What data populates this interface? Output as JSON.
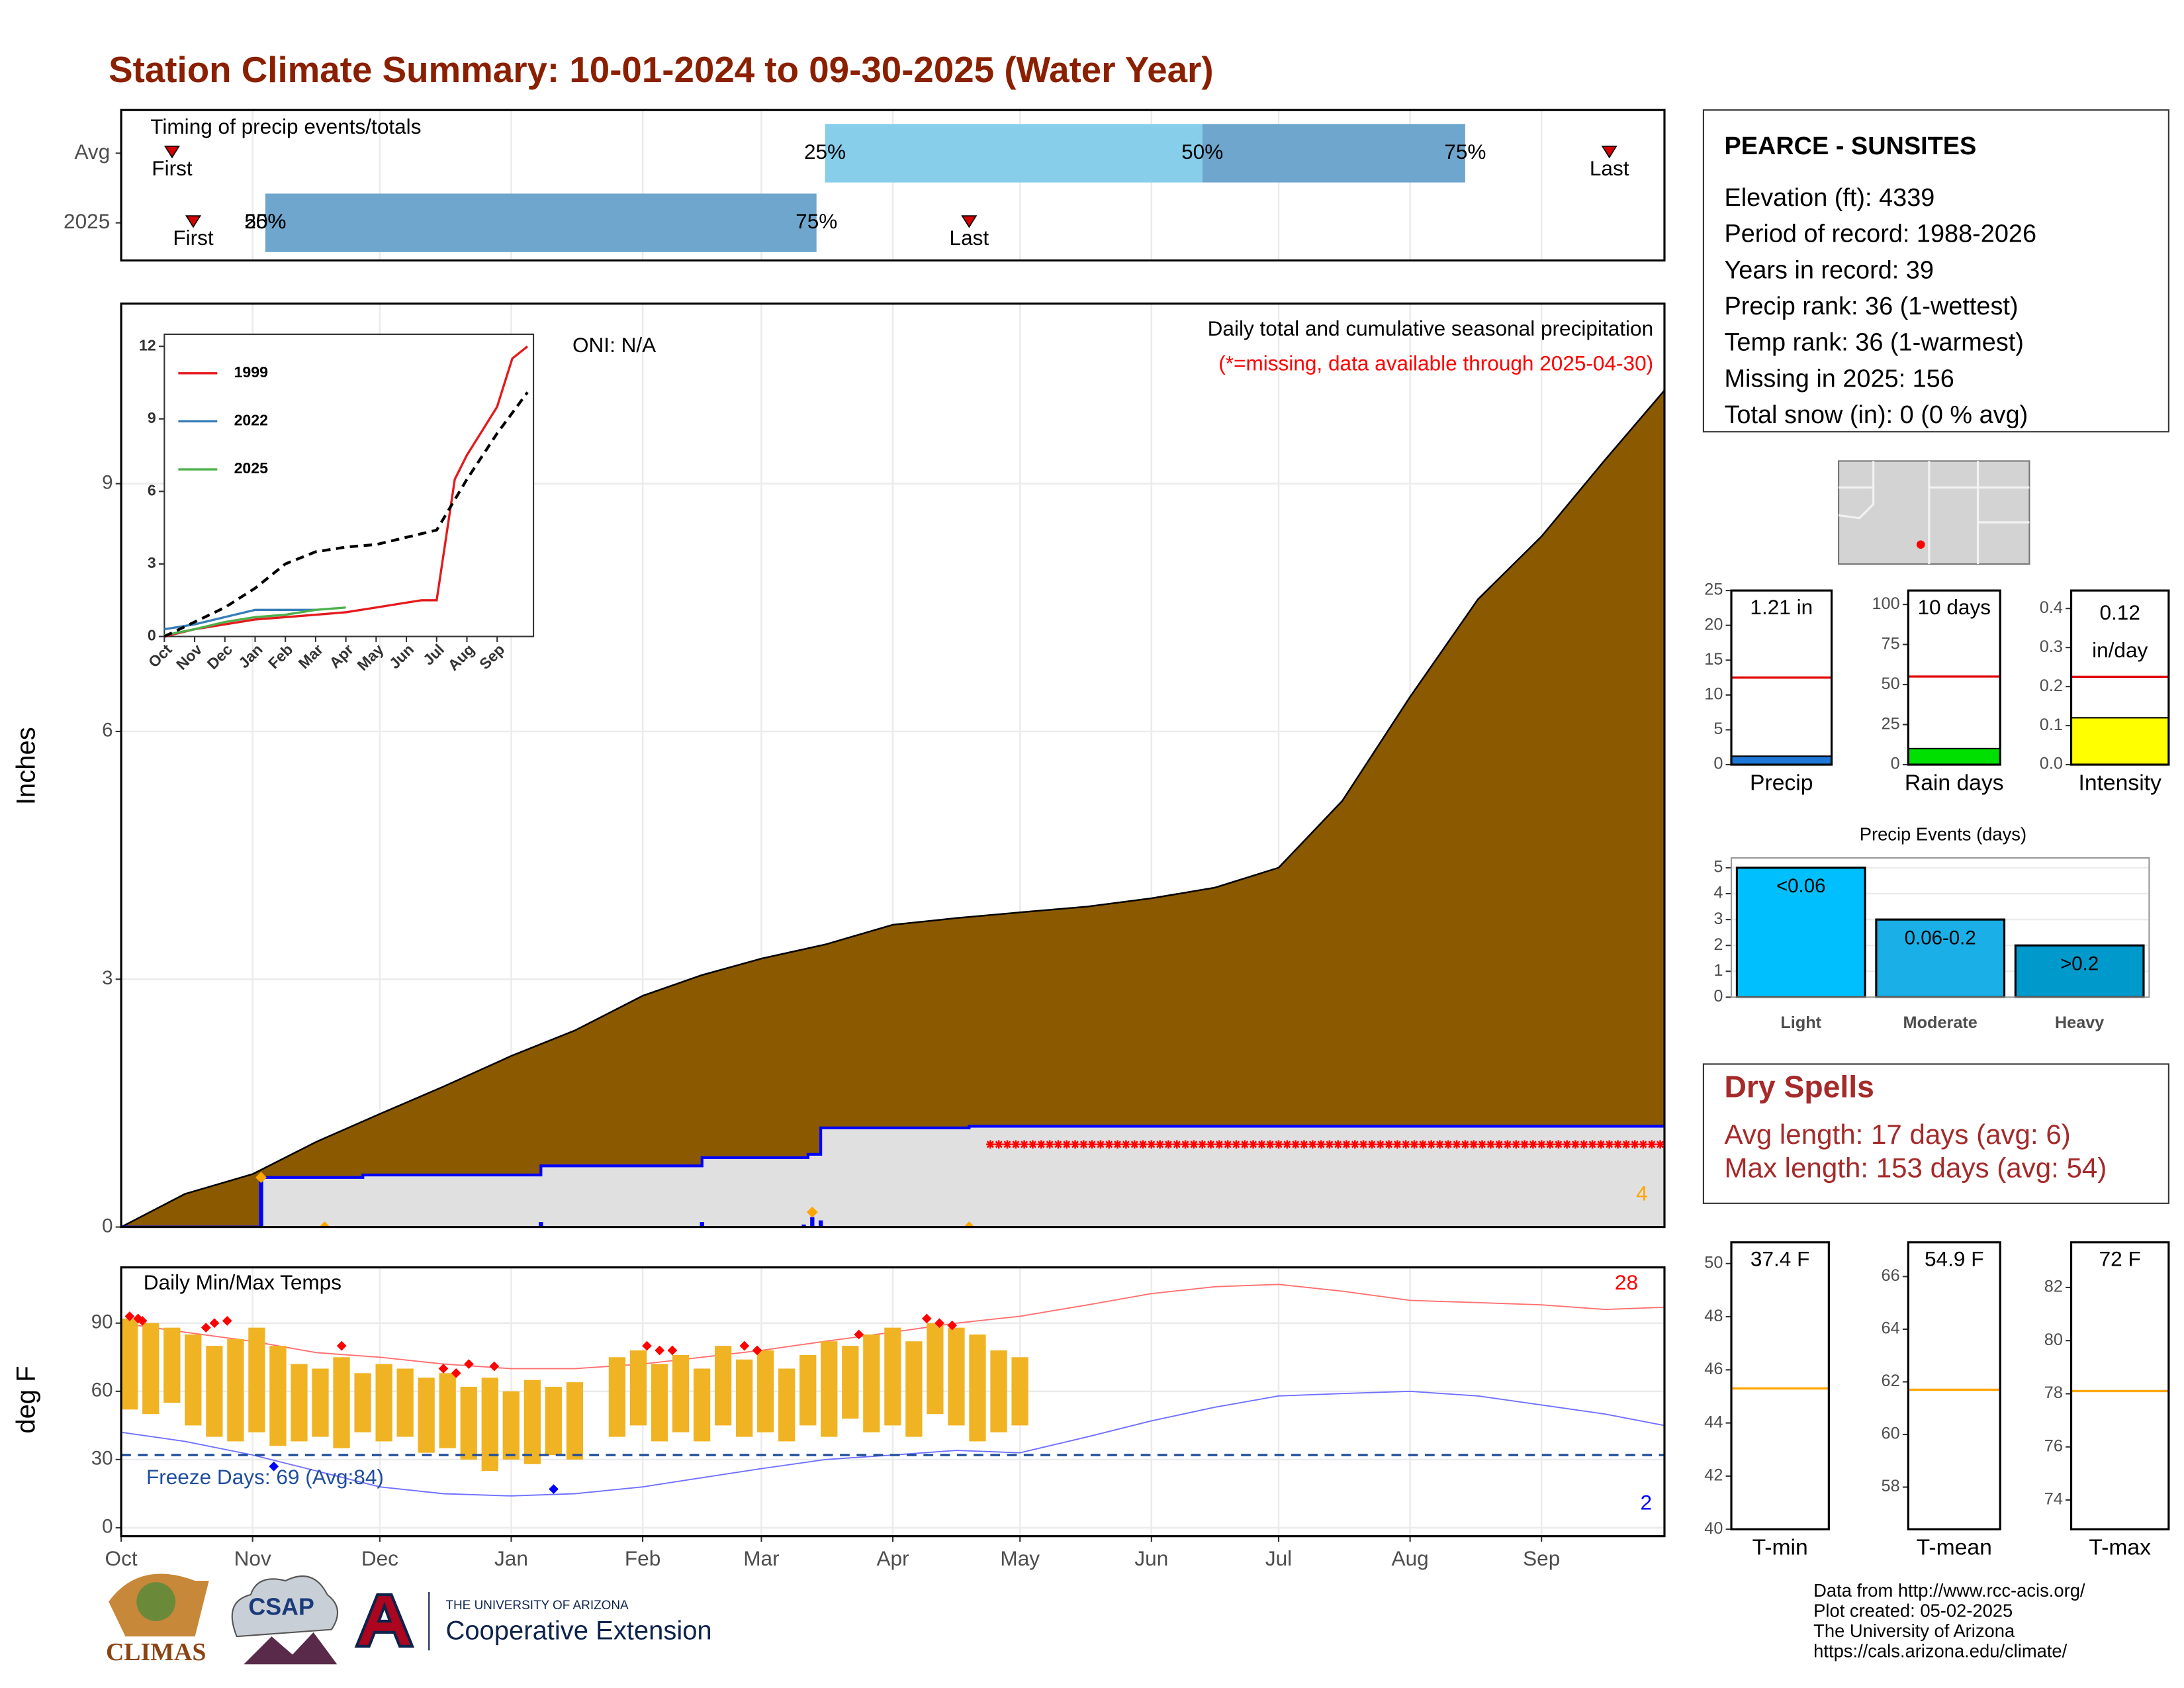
{
  "title": "Station Climate Summary: 10-01-2024 to 09-30-2025 (Water Year)",
  "station": {
    "name": "PEARCE - SUNSITES",
    "lines": [
      "Elevation (ft): 4339",
      "Period of record: 1988-2026",
      "Years in record: 39",
      "Precip rank: 36 (1-wettest)",
      "Temp rank: 36 (1-warmest)",
      "Missing in 2025: 156",
      "Total snow (in): 0 (0 % avg)"
    ]
  },
  "dry_spells": {
    "title": "Dry Spells",
    "lines": [
      "Avg length: 17 days (avg: 6)",
      "Max length: 153 days (avg: 54)"
    ]
  },
  "footer": [
    "Data from http://www.rcc-acis.org/",
    "Plot created: 05-02-2025",
    "The University of Arizona",
    "https://cals.arizona.edu/climate/"
  ],
  "logos": {
    "climas": "CLIMAS",
    "csap": "CSAP",
    "university": "THE UNIVERSITY OF ARIZONA",
    "extension": "Cooperative Extension"
  },
  "chart_data": [
    {
      "type": "timing",
      "label": "Timing of precip events/totals",
      "xlim": [
        0,
        364
      ],
      "xticks": [
        0,
        31,
        61,
        92,
        123,
        151,
        182,
        212,
        243,
        273,
        304,
        335
      ],
      "first_label": "First",
      "last_label": "Last",
      "quantile_labels": [
        "25%",
        "50%",
        "75%"
      ],
      "colors": [
        "#87ceeb",
        "#6fa6cd"
      ],
      "marker_color": "#d40000",
      "series": [
        {
          "name": "Avg",
          "first": 12,
          "quantiles": [
            166,
            255,
            317
          ],
          "last": 351
        },
        {
          "name": "2025",
          "first": 17,
          "quantiles": [
            34,
            34,
            164
          ],
          "last": 200
        }
      ]
    },
    {
      "type": "area",
      "ylabel": "Inches",
      "title": "Daily total and cumulative seasonal precipitation",
      "note": "(*=missing, data available through 2025-04-30)",
      "annotation": "ONI: N/A",
      "count_label": "4",
      "xlim": [
        0,
        364
      ],
      "xticks": [
        0,
        31,
        61,
        92,
        123,
        151,
        182,
        212,
        243,
        273,
        304,
        335
      ],
      "ylim": [
        0,
        11.18
      ],
      "yticks": [
        0,
        3,
        6,
        9
      ],
      "series": [
        {
          "color": "#8b5a00",
          "x": [
            0,
            15,
            31,
            46,
            61,
            76,
            92,
            107,
            123,
            137,
            151,
            166,
            182,
            197,
            212,
            228,
            243,
            258,
            273,
            288,
            304,
            320,
            335,
            350,
            364
          ],
          "values": [
            0,
            0.4,
            0.64,
            1.03,
            1.37,
            1.7,
            2.07,
            2.38,
            2.8,
            3.05,
            3.25,
            3.42,
            3.66,
            3.74,
            3.81,
            3.88,
            3.98,
            4.11,
            4.35,
            5.16,
            6.42,
            7.6,
            8.36,
            9.29,
            10.13
          ]
        },
        {
          "color": "#0000ff",
          "fill": "#e0e0e0",
          "x": [
            0,
            33,
            57,
            99,
            137,
            162,
            165,
            200,
            364
          ],
          "values": [
            0,
            0.6,
            0.63,
            0.74,
            0.84,
            0.88,
            1.2,
            1.22,
            1.22
          ]
        }
      ],
      "daily": {
        "color": "#0000ff",
        "x": [
          33,
          99,
          137,
          161,
          163,
          165
        ],
        "values": [
          0.6,
          0.06,
          0.06,
          0.03,
          0.12,
          0.08
        ]
      },
      "markers": {
        "color": "#ffa500",
        "x": [
          33,
          48,
          163,
          200
        ],
        "values": [
          0.6,
          0,
          0.18,
          0
        ]
      },
      "missing": {
        "color": "#ff0000",
        "from": 205,
        "to": 364,
        "level": 1.0
      }
    },
    {
      "type": "line",
      "xlim": [
        0,
        12.2
      ],
      "ylim": [
        0,
        12.5
      ],
      "yticks": [
        0,
        3,
        6,
        9,
        12
      ],
      "xticks": [
        {
          "value": 0,
          "label": "Oct"
        },
        {
          "value": 1,
          "label": "Nov"
        },
        {
          "value": 2,
          "label": "Dec"
        },
        {
          "value": 3,
          "label": "Jan"
        },
        {
          "value": 4,
          "label": "Feb"
        },
        {
          "value": 5,
          "label": "Mar"
        },
        {
          "value": 6,
          "label": "Apr"
        },
        {
          "value": 7,
          "label": "May"
        },
        {
          "value": 8,
          "label": "Jun"
        },
        {
          "value": 9,
          "label": "Jul"
        },
        {
          "value": 10,
          "label": "Aug"
        },
        {
          "value": 11,
          "label": "Sep"
        }
      ],
      "series": [
        {
          "name": "1999",
          "color": "#e41a1c",
          "x": [
            0,
            1,
            2,
            3,
            4,
            5,
            6,
            7,
            8,
            8.5,
            9,
            9.3,
            9.6,
            10,
            10.5,
            11,
            11.5,
            12
          ],
          "values": [
            0,
            0.3,
            0.5,
            0.7,
            0.8,
            0.9,
            1.0,
            1.2,
            1.4,
            1.5,
            1.5,
            4,
            6.5,
            7.5,
            8.5,
            9.5,
            11.5,
            12
          ]
        },
        {
          "name": "2022",
          "color": "#377eb8",
          "x": [
            0,
            1,
            2,
            3,
            4,
            5
          ],
          "values": [
            0.3,
            0.5,
            0.8,
            1.1,
            1.1,
            1.1
          ]
        },
        {
          "name": "2025",
          "color": "#4daf4a",
          "x": [
            0,
            1,
            2,
            3,
            4,
            5,
            6
          ],
          "values": [
            0.05,
            0.3,
            0.6,
            0.8,
            0.9,
            1.1,
            1.2
          ]
        },
        {
          "color": "#000000",
          "dash": true,
          "x": [
            0,
            1,
            2,
            3,
            4,
            5,
            6,
            7,
            8,
            9,
            10,
            11,
            12
          ],
          "values": [
            0,
            0.6,
            1.2,
            2.0,
            3.0,
            3.5,
            3.7,
            3.8,
            4.1,
            4.4,
            6.5,
            8.4,
            10.1
          ]
        }
      ]
    },
    {
      "type": "temperature",
      "title": "Daily Min/Max Temps",
      "ylabel": "deg F",
      "xlim": [
        0,
        364
      ],
      "ylim": [
        -3.7,
        114.5
      ],
      "yticks": [
        0,
        30,
        60,
        90
      ],
      "xticks": [
        {
          "value": 0,
          "label": "Oct"
        },
        {
          "value": 31,
          "label": "Nov"
        },
        {
          "value": 61,
          "label": "Dec"
        },
        {
          "value": 92,
          "label": "Jan"
        },
        {
          "value": 123,
          "label": "Feb"
        },
        {
          "value": 151,
          "label": "Mar"
        },
        {
          "value": 182,
          "label": "Apr"
        },
        {
          "value": 212,
          "label": "May"
        },
        {
          "value": 243,
          "label": "Jun"
        },
        {
          "value": 273,
          "label": "Jul"
        },
        {
          "value": 304,
          "label": "Aug"
        },
        {
          "value": 335,
          "label": "Sep"
        }
      ],
      "freeze": {
        "value": 32,
        "label": "Freeze Days: 69 (Avg:84)",
        "color": "#1f4e9c"
      },
      "high_count": {
        "label": "28",
        "color": "#ff0000"
      },
      "low_count": {
        "label": "2",
        "color": "#0000ff"
      },
      "normals": [
        {
          "color": "#ff7070",
          "x": [
            0,
            15,
            31,
            46,
            61,
            76,
            92,
            107,
            123,
            137,
            151,
            166,
            182,
            197,
            212,
            228,
            243,
            258,
            273,
            288,
            304,
            320,
            335,
            350,
            364
          ],
          "values": [
            90,
            86,
            82,
            77,
            75,
            72,
            70,
            70,
            72,
            75,
            78,
            82,
            86,
            90,
            93,
            98,
            103,
            106,
            107,
            104,
            100,
            99,
            98,
            96,
            97
          ]
        },
        {
          "color": "#7070ff",
          "x": [
            0,
            15,
            31,
            46,
            61,
            76,
            92,
            107,
            123,
            137,
            151,
            166,
            182,
            197,
            212,
            228,
            243,
            258,
            273,
            288,
            304,
            320,
            335,
            350,
            364
          ],
          "values": [
            42,
            38,
            32,
            25,
            18,
            15,
            14,
            15,
            18,
            22,
            26,
            30,
            32,
            34,
            33,
            40,
            47,
            53,
            58,
            59,
            60,
            58,
            54,
            50,
            45
          ]
        }
      ],
      "daily": {
        "color": "#f0b323",
        "x": [
          0,
          5,
          10,
          15,
          20,
          25,
          30,
          35,
          40,
          45,
          50,
          55,
          60,
          65,
          70,
          75,
          80,
          85,
          90,
          95,
          100,
          105,
          110,
          115,
          120,
          125,
          130,
          135,
          140,
          145,
          150,
          155,
          160,
          165,
          170,
          175,
          180,
          185,
          190,
          195,
          200,
          205,
          210
        ],
        "max": [
          92,
          90,
          88,
          85,
          80,
          83,
          88,
          80,
          72,
          70,
          75,
          68,
          72,
          70,
          66,
          68,
          62,
          66,
          60,
          65,
          62,
          64,
          null,
          75,
          78,
          72,
          76,
          70,
          80,
          74,
          78,
          70,
          76,
          82,
          80,
          85,
          88,
          82,
          90,
          88,
          85,
          78,
          75
        ],
        "min": [
          52,
          50,
          55,
          45,
          40,
          38,
          42,
          36,
          38,
          40,
          35,
          42,
          38,
          40,
          33,
          35,
          30,
          25,
          30,
          28,
          32,
          30,
          null,
          40,
          45,
          38,
          42,
          38,
          45,
          40,
          42,
          38,
          45,
          40,
          48,
          42,
          45,
          40,
          50,
          45,
          38,
          42,
          45
        ]
      },
      "record_highs": {
        "color": "#ff0000",
        "x": [
          2,
          4,
          5,
          20,
          22,
          25,
          52,
          76,
          79,
          82,
          88,
          124,
          127,
          130,
          147,
          150,
          174,
          190,
          193,
          196
        ],
        "values": [
          93,
          92,
          91,
          88,
          90,
          91,
          80,
          70,
          68,
          72,
          71,
          80,
          78,
          78,
          80,
          78,
          85,
          92,
          90,
          89
        ]
      },
      "record_lows": {
        "color": "#0000ff",
        "x": [
          36,
          102
        ],
        "values": [
          27,
          17
        ]
      }
    },
    {
      "type": "gauge",
      "label": "Precip",
      "value": 1.21,
      "value_labels": [
        "1.21 in"
      ],
      "average": 12.5,
      "avg_color": "#e00000",
      "color": "#1e78d7",
      "ylim": [
        0,
        25
      ],
      "yticks": [
        0,
        5,
        10,
        15,
        20,
        25
      ]
    },
    {
      "type": "gauge",
      "label": "Rain days",
      "value": 10,
      "value_labels": [
        "10 days"
      ],
      "average": 55,
      "avg_color": "#e00000",
      "color": "#00e000",
      "ylim": [
        0,
        108.7
      ],
      "yticks": [
        0,
        25,
        50,
        75,
        100
      ]
    },
    {
      "type": "gauge",
      "label": "Intensity",
      "value": 0.12,
      "value_labels": [
        "0.12",
        "in/day"
      ],
      "average": 0.225,
      "avg_color": "#e00000",
      "color": "#ffff00",
      "ylim": [
        0,
        0.446
      ],
      "yticks": [
        {
          "value": 0,
          "label": "0.0"
        },
        0.1,
        0.2,
        0.3,
        0.4
      ]
    },
    {
      "type": "bar",
      "title": "Precip Events (days)",
      "categories": [
        "Light",
        "Moderate",
        "Heavy"
      ],
      "values": [
        5,
        3,
        2
      ],
      "bar_labels": [
        "<0.06",
        "0.06-0.2",
        ">0.2"
      ],
      "colors": [
        "#00bfff",
        "#1aafe6",
        "#0099cc"
      ],
      "ylim": [
        0,
        5.38
      ],
      "yticks": [
        0,
        1,
        2,
        3,
        4,
        5
      ]
    },
    {
      "type": "gauge",
      "label": "T-min",
      "value": 37.4,
      "value_labels": [
        "37.4 F"
      ],
      "average": 45.3,
      "avg_color": "#ffa500",
      "color": "#f0b323",
      "ylim": [
        40,
        50.8
      ],
      "yticks": [
        40,
        42,
        44,
        46,
        48,
        50
      ]
    },
    {
      "type": "gauge",
      "label": "T-mean",
      "value": 54.9,
      "value_labels": [
        "54.9 F"
      ],
      "average": 61.7,
      "avg_color": "#ffa500",
      "color": "#f0b323",
      "ylim": [
        56.4,
        67.3
      ],
      "yticks": [
        58,
        60,
        62,
        64,
        66
      ]
    },
    {
      "type": "gauge",
      "label": "T-max",
      "value": 72,
      "value_labels": [
        "72 F"
      ],
      "average": 78.1,
      "avg_color": "#ffa500",
      "color": "#f0b323",
      "ylim": [
        72.9,
        83.7
      ],
      "yticks": [
        74,
        76,
        78,
        80,
        82
      ]
    }
  ]
}
